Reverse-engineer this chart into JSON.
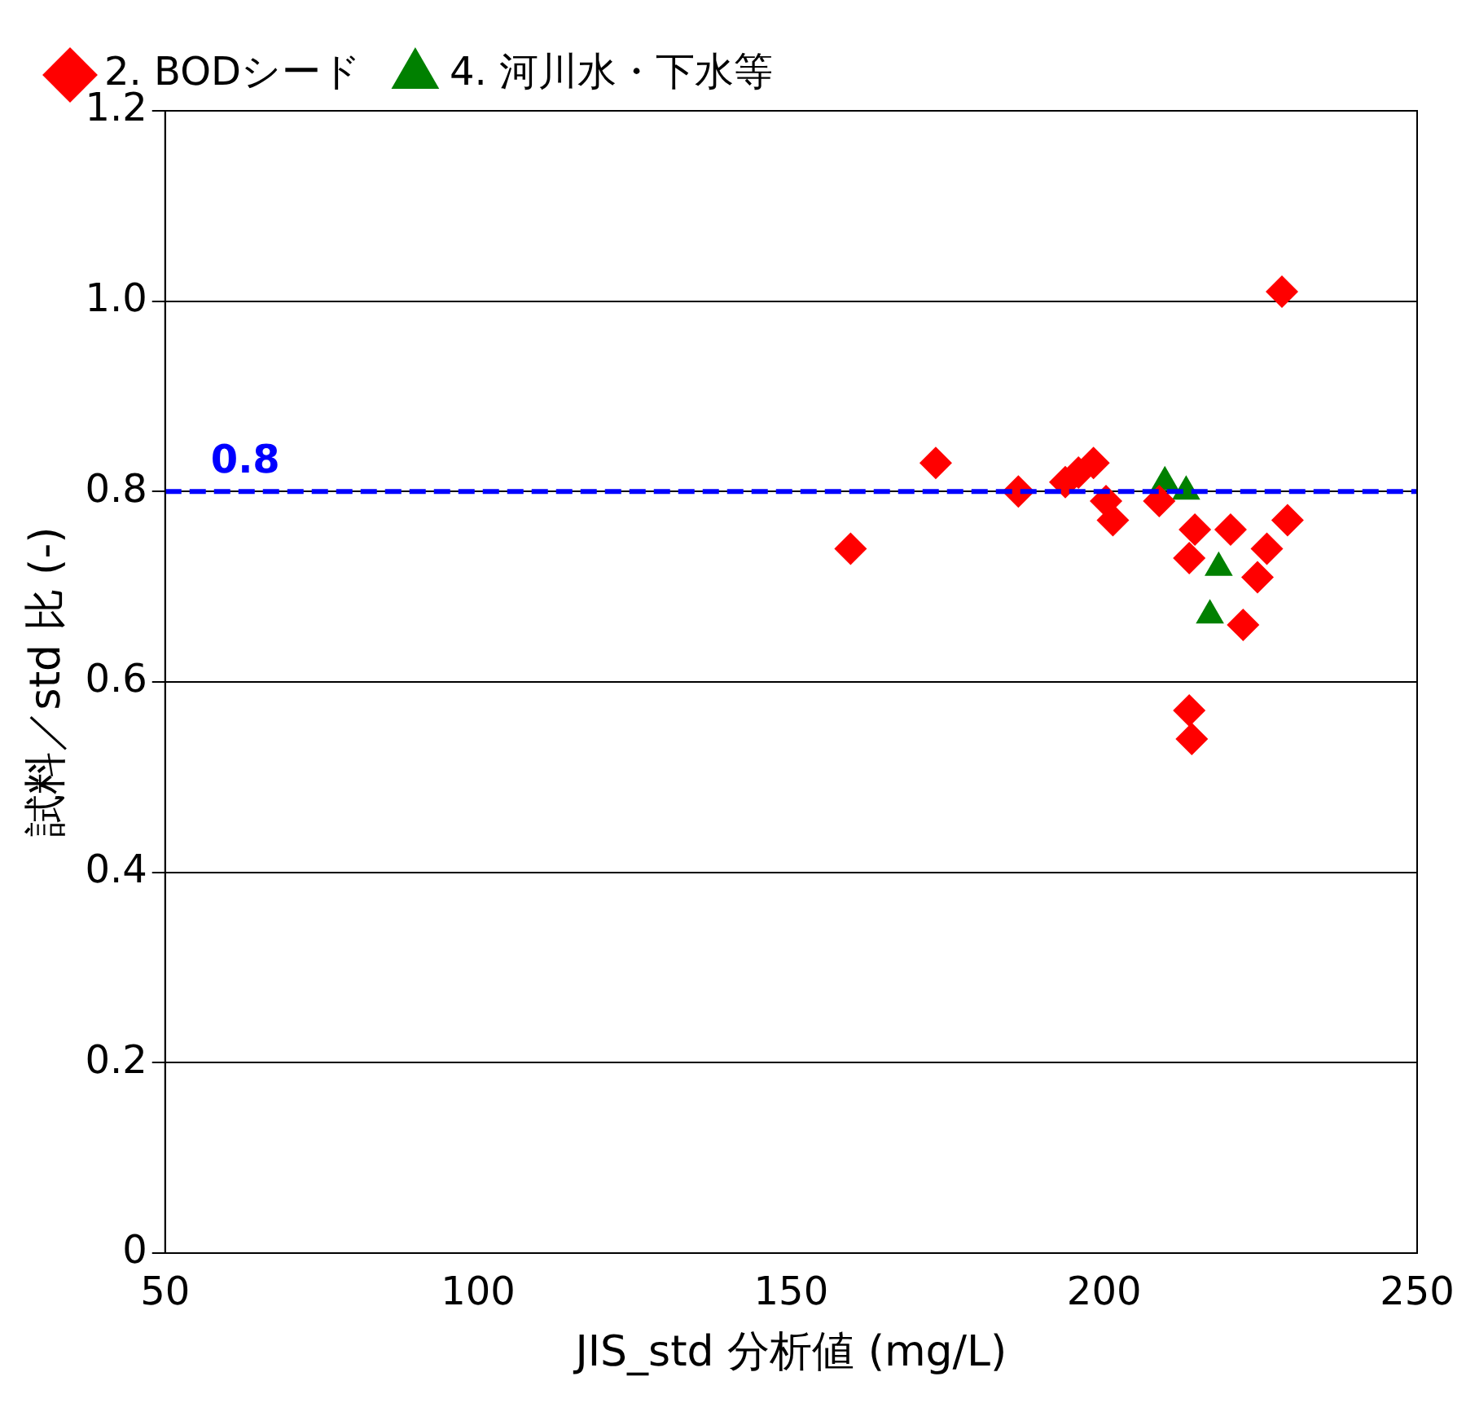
{
  "chart_data": {
    "type": "scatter",
    "xlabel": "JIS_std 分析値 (mg/L)",
    "ylabel": "試料／std 比 (-)",
    "xlim": [
      50,
      250
    ],
    "xticks": [
      50,
      100,
      150,
      200,
      250
    ],
    "ylim": [
      0,
      1.2
    ],
    "yticks": [
      0,
      {
        "value": 0.2,
        "label": "0.2"
      },
      {
        "value": 0.4,
        "label": "0.4"
      },
      {
        "value": 0.6,
        "label": "0.6"
      },
      {
        "value": 0.8,
        "label": "0.8"
      },
      {
        "value": 1.0,
        "label": "1.0"
      },
      {
        "value": 1.2,
        "label": "1.2"
      }
    ],
    "grid": "y",
    "legend": "top left",
    "series": [
      {
        "name": "2. BODシード",
        "color": "#ff0000",
        "marker": "diamond",
        "x": [
          228.4,
          173.1,
          159.5,
          186.3,
          193.8,
          195.9,
          198.3,
          200.3,
          201.4,
          208.8,
          214.5,
          213.6,
          220.2,
          229.3,
          226.0,
          224.5,
          222.2,
          213.6,
          214.0
        ],
        "values": [
          1.01,
          0.83,
          0.74,
          0.8,
          0.81,
          0.82,
          0.83,
          0.79,
          0.77,
          0.79,
          0.76,
          0.73,
          0.76,
          0.77,
          0.74,
          0.71,
          0.66,
          0.57,
          0.54
        ]
      },
      {
        "name": "4. 河川水・下水等",
        "color": "#008000",
        "marker": "triangle",
        "x": [
          209.7,
          213.1,
          218.3,
          216.9
        ],
        "values": [
          0.81,
          0.8,
          0.72,
          0.67
        ]
      }
    ],
    "ref_lines": [
      {
        "axis": "y",
        "value": 0.8,
        "label": "0.8",
        "color": "#0000ff",
        "line_style": "dashed"
      }
    ]
  }
}
